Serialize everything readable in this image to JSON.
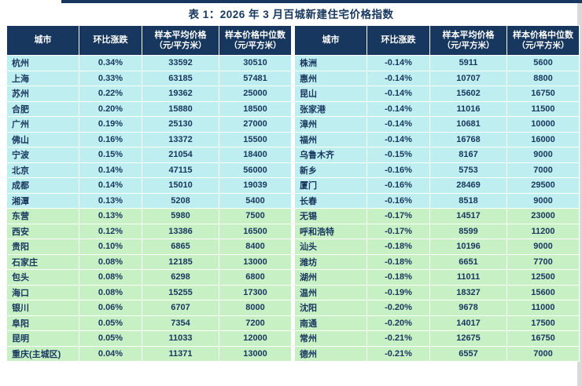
{
  "title": "表 1：2026 年 3 月百城新建住宅价格指数",
  "columns": [
    {
      "label": "城市",
      "sub": ""
    },
    {
      "label": "环比涨跌",
      "sub": ""
    },
    {
      "label": "样本平均价格",
      "sub": "（元/平方米）"
    },
    {
      "label": "样本价格中位数",
      "sub": "（元/平方米）"
    }
  ],
  "colors": {
    "header_bg": "#17375e",
    "row_cyan": "#bfeef0",
    "row_green": "#c8f0c5",
    "text": "#17375e",
    "top_bar": "#17375e"
  },
  "left_table": {
    "rows": [
      {
        "city": "杭州",
        "change": "0.34%",
        "avg": "33592",
        "median": "30510",
        "group": "cyan"
      },
      {
        "city": "上海",
        "change": "0.33%",
        "avg": "63185",
        "median": "57481",
        "group": "cyan"
      },
      {
        "city": "苏州",
        "change": "0.22%",
        "avg": "19362",
        "median": "25000",
        "group": "cyan"
      },
      {
        "city": "合肥",
        "change": "0.20%",
        "avg": "15880",
        "median": "18500",
        "group": "cyan"
      },
      {
        "city": "广州",
        "change": "0.19%",
        "avg": "25130",
        "median": "27000",
        "group": "cyan"
      },
      {
        "city": "佛山",
        "change": "0.16%",
        "avg": "13372",
        "median": "15500",
        "group": "cyan"
      },
      {
        "city": "宁波",
        "change": "0.15%",
        "avg": "21054",
        "median": "18400",
        "group": "cyan"
      },
      {
        "city": "北京",
        "change": "0.14%",
        "avg": "47115",
        "median": "56000",
        "group": "cyan"
      },
      {
        "city": "成都",
        "change": "0.14%",
        "avg": "15010",
        "median": "19039",
        "group": "cyan"
      },
      {
        "city": "湘潭",
        "change": "0.13%",
        "avg": "5208",
        "median": "5400",
        "group": "cyan"
      },
      {
        "city": "东营",
        "change": "0.13%",
        "avg": "5980",
        "median": "7500",
        "group": "green"
      },
      {
        "city": "西安",
        "change": "0.12%",
        "avg": "13386",
        "median": "16500",
        "group": "green"
      },
      {
        "city": "贵阳",
        "change": "0.10%",
        "avg": "6865",
        "median": "8400",
        "group": "green"
      },
      {
        "city": "石家庄",
        "change": "0.08%",
        "avg": "12185",
        "median": "13000",
        "group": "green"
      },
      {
        "city": "包头",
        "change": "0.08%",
        "avg": "6298",
        "median": "6800",
        "group": "green"
      },
      {
        "city": "海口",
        "change": "0.08%",
        "avg": "15255",
        "median": "17300",
        "group": "green"
      },
      {
        "city": "银川",
        "change": "0.06%",
        "avg": "6707",
        "median": "8000",
        "group": "green"
      },
      {
        "city": "阜阳",
        "change": "0.05%",
        "avg": "7354",
        "median": "7200",
        "group": "green"
      },
      {
        "city": "昆明",
        "change": "0.05%",
        "avg": "11033",
        "median": "12000",
        "group": "green"
      },
      {
        "city": "重庆(主城区)",
        "change": "0.04%",
        "avg": "11371",
        "median": "13000",
        "group": "green"
      }
    ]
  },
  "right_table": {
    "rows": [
      {
        "city": "株洲",
        "change": "-0.14%",
        "avg": "5911",
        "median": "5600",
        "group": "cyan"
      },
      {
        "city": "惠州",
        "change": "-0.14%",
        "avg": "10707",
        "median": "8800",
        "group": "cyan"
      },
      {
        "city": "昆山",
        "change": "-0.14%",
        "avg": "15602",
        "median": "16750",
        "group": "cyan"
      },
      {
        "city": "张家港",
        "change": "-0.14%",
        "avg": "11016",
        "median": "11500",
        "group": "cyan"
      },
      {
        "city": "漳州",
        "change": "-0.14%",
        "avg": "10681",
        "median": "10000",
        "group": "cyan"
      },
      {
        "city": "福州",
        "change": "-0.14%",
        "avg": "16768",
        "median": "16000",
        "group": "cyan"
      },
      {
        "city": "乌鲁木齐",
        "change": "-0.15%",
        "avg": "8167",
        "median": "9000",
        "group": "cyan"
      },
      {
        "city": "新乡",
        "change": "-0.16%",
        "avg": "5753",
        "median": "7000",
        "group": "cyan"
      },
      {
        "city": "厦门",
        "change": "-0.16%",
        "avg": "28469",
        "median": "29500",
        "group": "cyan"
      },
      {
        "city": "长春",
        "change": "-0.16%",
        "avg": "8518",
        "median": "9000",
        "group": "cyan"
      },
      {
        "city": "无锡",
        "change": "-0.17%",
        "avg": "14517",
        "median": "23000",
        "group": "green"
      },
      {
        "city": "呼和浩特",
        "change": "-0.17%",
        "avg": "8599",
        "median": "11200",
        "group": "green"
      },
      {
        "city": "汕头",
        "change": "-0.18%",
        "avg": "10196",
        "median": "9000",
        "group": "green"
      },
      {
        "city": "潍坊",
        "change": "-0.18%",
        "avg": "6651",
        "median": "7700",
        "group": "green"
      },
      {
        "city": "湖州",
        "change": "-0.18%",
        "avg": "11011",
        "median": "12500",
        "group": "green"
      },
      {
        "city": "温州",
        "change": "-0.19%",
        "avg": "18327",
        "median": "15600",
        "group": "green"
      },
      {
        "city": "沈阳",
        "change": "-0.20%",
        "avg": "9678",
        "median": "11000",
        "group": "green"
      },
      {
        "city": "南通",
        "change": "-0.20%",
        "avg": "14017",
        "median": "17500",
        "group": "green"
      },
      {
        "city": "常州",
        "change": "-0.21%",
        "avg": "12675",
        "median": "16750",
        "group": "green"
      },
      {
        "city": "德州",
        "change": "-0.21%",
        "avg": "6557",
        "median": "7000",
        "group": "green"
      }
    ]
  }
}
